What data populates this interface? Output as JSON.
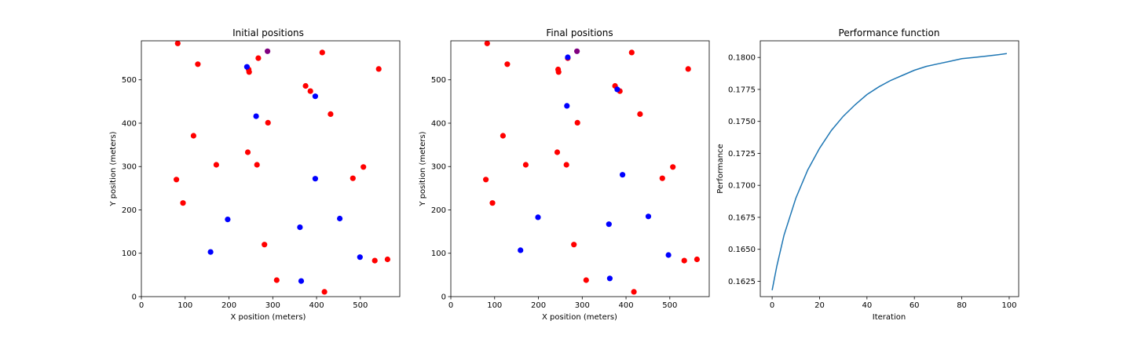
{
  "chart_data": [
    {
      "type": "scatter",
      "title": "Initial positions",
      "xlabel": "X position (meters)",
      "ylabel": "Y position (meters)",
      "xlim": [
        0,
        590
      ],
      "ylim": [
        0,
        590
      ],
      "xticks": [
        0,
        100,
        200,
        300,
        400,
        500
      ],
      "yticks": [
        0,
        100,
        200,
        300,
        400,
        500
      ],
      "grid": false,
      "series": [
        {
          "color": "#ff0000",
          "points": [
            [
              83,
              584
            ],
            [
              129,
              536
            ],
            [
              245,
              524
            ],
            [
              246,
              518
            ],
            [
              267,
              550
            ],
            [
              413,
              563
            ],
            [
              542,
              525
            ],
            [
              375,
              486
            ],
            [
              386,
              474
            ],
            [
              432,
              421
            ],
            [
              289,
              401
            ],
            [
              119,
              371
            ],
            [
              243,
              333
            ],
            [
              171,
              304
            ],
            [
              264,
              304
            ],
            [
              80,
              270
            ],
            [
              507,
              299
            ],
            [
              483,
              273
            ],
            [
              95,
              216
            ],
            [
              281,
              120
            ],
            [
              533,
              83
            ],
            [
              562,
              86
            ],
            [
              309,
              38
            ],
            [
              418,
              11
            ]
          ]
        },
        {
          "color": "#0000ff",
          "points": [
            [
              241,
              530
            ],
            [
              397,
              462
            ],
            [
              262,
              416
            ],
            [
              397,
              272
            ],
            [
              197,
              178
            ],
            [
              453,
              180
            ],
            [
              362,
              160
            ],
            [
              158,
              103
            ],
            [
              499,
              91
            ],
            [
              365,
              36
            ]
          ]
        },
        {
          "color": "#800080",
          "points": [
            [
              288,
              566
            ]
          ]
        }
      ]
    },
    {
      "type": "scatter",
      "title": "Final positions",
      "xlabel": "X position (meters)",
      "ylabel": "Y position (meters)",
      "xlim": [
        0,
        590
      ],
      "ylim": [
        0,
        590
      ],
      "xticks": [
        0,
        100,
        200,
        300,
        400,
        500
      ],
      "yticks": [
        0,
        100,
        200,
        300,
        400,
        500
      ],
      "grid": false,
      "series": [
        {
          "color": "#ff0000",
          "points": [
            [
              83,
              584
            ],
            [
              129,
              536
            ],
            [
              245,
              524
            ],
            [
              246,
              518
            ],
            [
              267,
              550
            ],
            [
              413,
              563
            ],
            [
              542,
              525
            ],
            [
              375,
              486
            ],
            [
              386,
              474
            ],
            [
              432,
              421
            ],
            [
              289,
              401
            ],
            [
              119,
              371
            ],
            [
              243,
              333
            ],
            [
              171,
              304
            ],
            [
              264,
              304
            ],
            [
              80,
              270
            ],
            [
              507,
              299
            ],
            [
              483,
              273
            ],
            [
              95,
              216
            ],
            [
              281,
              120
            ],
            [
              533,
              83
            ],
            [
              562,
              86
            ],
            [
              309,
              38
            ],
            [
              418,
              11
            ]
          ]
        },
        {
          "color": "#0000ff",
          "points": [
            [
              267,
              552
            ],
            [
              380,
              478
            ],
            [
              265,
              440
            ],
            [
              392,
              281
            ],
            [
              199,
              183
            ],
            [
              451,
              185
            ],
            [
              361,
              167
            ],
            [
              159,
              107
            ],
            [
              497,
              96
            ],
            [
              363,
              42
            ]
          ]
        },
        {
          "color": "#800080",
          "points": [
            [
              288,
              566
            ]
          ]
        }
      ]
    },
    {
      "type": "line",
      "title": "Performance function",
      "xlabel": "Iteration",
      "ylabel": "Performance",
      "xlim": [
        -5,
        104
      ],
      "ylim": [
        0.1613,
        0.1813
      ],
      "xticks": [
        0,
        20,
        40,
        60,
        80,
        100
      ],
      "yticks": [
        0.1625,
        0.165,
        0.1675,
        0.17,
        0.1725,
        0.175,
        0.1775,
        0.18
      ],
      "ytick_labels": [
        "0.1625",
        "0.1650",
        "0.1675",
        "0.1700",
        "0.1725",
        "0.1750",
        "0.1775",
        "0.1800"
      ],
      "grid": false,
      "series": [
        {
          "color": "#1f77b4",
          "x": [
            0,
            2,
            5,
            10,
            15,
            20,
            25,
            30,
            35,
            40,
            45,
            50,
            55,
            60,
            65,
            70,
            75,
            80,
            85,
            90,
            95,
            99
          ],
          "values": [
            0.1618,
            0.1637,
            0.1661,
            0.169,
            0.1712,
            0.1729,
            0.1743,
            0.1754,
            0.1763,
            0.1771,
            0.1777,
            0.1782,
            0.1786,
            0.179,
            0.1793,
            0.1795,
            0.1797,
            0.1799,
            0.18,
            0.1801,
            0.1802,
            0.1803
          ]
        }
      ]
    }
  ]
}
